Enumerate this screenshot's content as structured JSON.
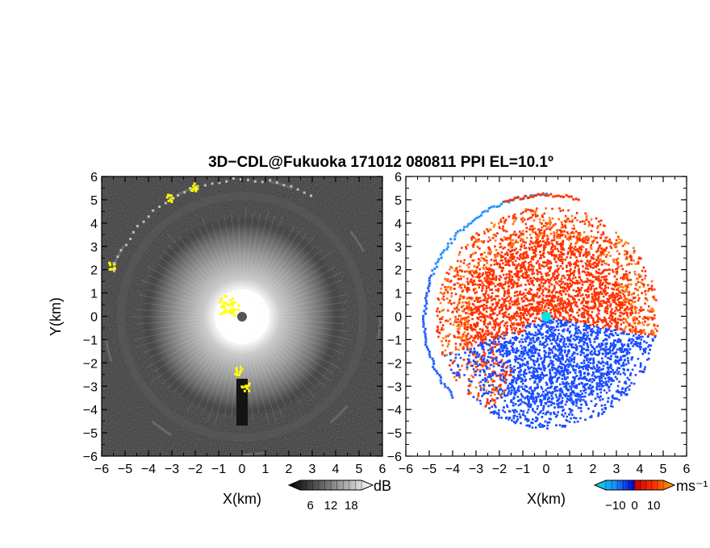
{
  "title": "3D−CDL@Fukuoka 171012 080811 PPI EL=10.1º",
  "chart_data": [
    {
      "panel": "left",
      "type": "heatmap",
      "quantity": "backscatter intensity",
      "xlabel": "X(km)",
      "ylabel": "Y(km)",
      "xlim": [
        -6,
        6
      ],
      "ylim": [
        -6,
        6
      ],
      "xticks": [
        "−6",
        "−5",
        "−4",
        "−3",
        "−2",
        "−1",
        "0",
        "1",
        "2",
        "3",
        "4",
        "5",
        "6"
      ],
      "yticks": [
        "6",
        "5",
        "4",
        "3",
        "2",
        "1",
        "0",
        "−1",
        "−2",
        "−3",
        "−4",
        "−5",
        "−6"
      ],
      "colormap": "grayscale",
      "colorbar": {
        "unit": "dB",
        "ticks": [
          "6",
          "12",
          "18"
        ],
        "range": [
          3,
          21
        ]
      },
      "features": {
        "scan_edge_radius_km": 6,
        "bright_core_radius_km": 1.3,
        "diffuse_halo_radius_km": 4.3,
        "yellow_clusters_km": [
          [
            -0.6,
            0.5
          ],
          [
            -0.2,
            -2.3
          ],
          [
            0.1,
            -3.0
          ],
          [
            -2.1,
            5.6
          ],
          [
            -5.6,
            2.2
          ],
          [
            -3.1,
            5.1
          ]
        ]
      }
    },
    {
      "panel": "right",
      "type": "heatmap",
      "quantity": "radial velocity",
      "xlabel": "X(km)",
      "xlim": [
        -6,
        6
      ],
      "ylim": [
        -6,
        6
      ],
      "xticks": [
        "−6",
        "−5",
        "−4",
        "−3",
        "−2",
        "−1",
        "0",
        "1",
        "2",
        "3",
        "4",
        "5",
        "6"
      ],
      "yticks": [
        "6",
        "5",
        "4",
        "3",
        "2",
        "1",
        "0",
        "−1",
        "−2",
        "−3",
        "−4",
        "−5",
        "−6"
      ],
      "colormap": "blue-red diverging",
      "colorbar": {
        "unit": "ms⁻¹",
        "ticks": [
          "−10",
          "0",
          "10"
        ],
        "range": [
          -15,
          15
        ]
      },
      "features": {
        "positive_region_color": "#ff3300",
        "negative_region_color": "#1a4dff",
        "outer_ring_color": "#1e90ff",
        "center_marker_color": "#00e5e5",
        "echo_radius_km": 4.4
      }
    }
  ]
}
